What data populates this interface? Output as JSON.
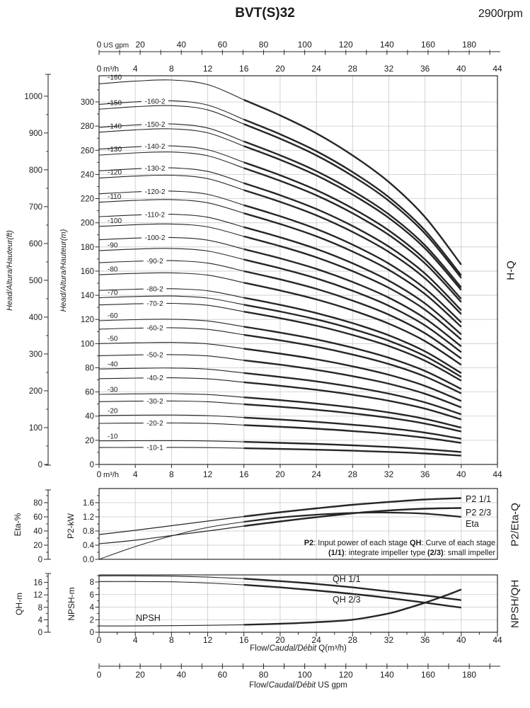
{
  "header": {
    "title": "BVT(S)32",
    "rpm": "2900rpm"
  },
  "axes": {
    "gpm_unit": "US gpm",
    "m3h_unit": "m³/h",
    "gpm_ticks": [
      0,
      20,
      40,
      60,
      80,
      100,
      120,
      140,
      160,
      180
    ],
    "gpm_minor_step": 10,
    "m3h_ticks": [
      0,
      4,
      8,
      12,
      16,
      20,
      24,
      28,
      32,
      36,
      40,
      44
    ],
    "ft_ticks": [
      0,
      100,
      200,
      300,
      400,
      500,
      600,
      700,
      800,
      900,
      1000
    ],
    "m_ticks": [
      0,
      20,
      40,
      60,
      80,
      100,
      120,
      140,
      160,
      180,
      200,
      220,
      240,
      260,
      280,
      300
    ],
    "eta_ticks": [
      0,
      20,
      40,
      60,
      80
    ],
    "kw_ticks": [
      "0.0",
      "0.4",
      "0.8",
      "1.2",
      "1.6"
    ],
    "qh_ticks": [
      0,
      4,
      8,
      12,
      16
    ],
    "npsh_ticks": [
      0,
      2,
      4,
      6,
      8
    ],
    "head_ft_label": "Head/Altura/Hauteur(ft)",
    "head_m_label": "Head/Altura/Hauteur(m)",
    "eta_label": "Eta-%",
    "p2_label": "P2-kW",
    "qh_label": "QH-m",
    "npsh_label": "NPSH-m",
    "right_hq": "H-Q",
    "right_p2": "P2/Eta-Q",
    "right_npsh": "NPSH/QH",
    "flow_caption_m3h": {
      "plain1": "Flow/",
      "italic": "Caudal/Débit",
      "plain2": " Q(m³/h)"
    },
    "flow_caption_gpm": {
      "plain1": "Flow/",
      "italic": "Caudal/Débit",
      "plain2": "  US gpm"
    }
  },
  "note": {
    "line1": [
      {
        "t": "P2",
        "b": 1
      },
      {
        "t": ": Input power of each stage ",
        "b": 0
      },
      {
        "t": "QH",
        "b": 1
      },
      {
        "t": ": Curve of each stage",
        "b": 0
      }
    ],
    "line2": [
      {
        "t": "(1/1)",
        "b": 1
      },
      {
        "t": ": integrate impeller type ",
        "b": 0
      },
      {
        "t": "(2/3)",
        "b": 1
      },
      {
        "t": ": small impeller",
        "b": 0
      }
    ]
  },
  "colors": {
    "curve": "#262626",
    "grid": "#c9c9c9",
    "border": "#2a2a2a",
    "text": "#1a1a1a"
  },
  "chart_data": [
    {
      "id": "hq_main",
      "type": "line",
      "right_label": "H-Q",
      "xlabel_units": [
        "US gpm",
        "m³/h"
      ],
      "x_range_m3h": [
        0,
        44
      ],
      "y_range_m": [
        0,
        318
      ],
      "y_range_ft": [
        0,
        1045
      ],
      "grid": true,
      "thick_from_q": 16,
      "shape_q": [
        0,
        4,
        8,
        12,
        16,
        20,
        24,
        28,
        32,
        36,
        40
      ],
      "shape_f": [
        1.0,
        1.007,
        1.01,
        0.998,
        0.958,
        0.917,
        0.87,
        0.812,
        0.742,
        0.65,
        0.525
      ],
      "curves": [
        {
          "label": "-160",
          "shutoff_head_m": 315,
          "style": "above"
        },
        {
          "label": "-160-2",
          "shutoff_head_m": 298,
          "style": "inline"
        },
        {
          "label": "-150",
          "shutoff_head_m": 294,
          "style": "above"
        },
        {
          "label": "-150-2",
          "shutoff_head_m": 279,
          "style": "inline"
        },
        {
          "label": "-140",
          "shutoff_head_m": 275,
          "style": "above"
        },
        {
          "label": "-140-2",
          "shutoff_head_m": 261,
          "style": "inline"
        },
        {
          "label": "-130",
          "shutoff_head_m": 256,
          "style": "above"
        },
        {
          "label": "-130-2",
          "shutoff_head_m": 243,
          "style": "inline"
        },
        {
          "label": "-120",
          "shutoff_head_m": 237,
          "style": "above"
        },
        {
          "label": "-120-2",
          "shutoff_head_m": 224,
          "style": "inline"
        },
        {
          "label": "-110",
          "shutoff_head_m": 217,
          "style": "above"
        },
        {
          "label": "-110-2",
          "shutoff_head_m": 205,
          "style": "inline"
        },
        {
          "label": "-100",
          "shutoff_head_m": 197,
          "style": "above"
        },
        {
          "label": "-100-2",
          "shutoff_head_m": 186,
          "style": "inline"
        },
        {
          "label": "-90",
          "shutoff_head_m": 177,
          "style": "above"
        },
        {
          "label": "-90-2",
          "shutoff_head_m": 167,
          "style": "inline"
        },
        {
          "label": "-80",
          "shutoff_head_m": 157,
          "style": "above"
        },
        {
          "label": "-80-2",
          "shutoff_head_m": 144,
          "style": "inline"
        },
        {
          "label": "-70",
          "shutoff_head_m": 138,
          "style": "above"
        },
        {
          "label": "-70-2",
          "shutoff_head_m": 132,
          "style": "inline"
        },
        {
          "label": "-60",
          "shutoff_head_m": 119,
          "style": "above"
        },
        {
          "label": "-60-2",
          "shutoff_head_m": 112,
          "style": "inline"
        },
        {
          "label": "-50",
          "shutoff_head_m": 100,
          "style": "above"
        },
        {
          "label": "-50-2",
          "shutoff_head_m": 90,
          "style": "inline"
        },
        {
          "label": "-40",
          "shutoff_head_m": 79,
          "style": "above"
        },
        {
          "label": "-40-2",
          "shutoff_head_m": 71,
          "style": "inline"
        },
        {
          "label": "-30",
          "shutoff_head_m": 58,
          "style": "above"
        },
        {
          "label": "-30-2",
          "shutoff_head_m": 52,
          "style": "inline"
        },
        {
          "label": "-20",
          "shutoff_head_m": 40.5,
          "style": "above"
        },
        {
          "label": "-20-2",
          "shutoff_head_m": 34,
          "style": "inline"
        },
        {
          "label": "-10",
          "shutoff_head_m": 19.5,
          "style": "above"
        },
        {
          "label": "-10-1",
          "shutoff_head_m": 14,
          "style": "inline"
        }
      ]
    },
    {
      "id": "p2_eta",
      "type": "line",
      "right_label": "P2/Eta-Q",
      "y_left_eta_range": [
        0,
        100
      ],
      "y_left_kw_range": [
        0,
        2.0
      ],
      "grid": true,
      "thick_from_q": 16,
      "series": [
        {
          "name": "P2 1/1",
          "unit": "kW",
          "x": [
            0,
            4,
            8,
            12,
            16,
            20,
            24,
            28,
            32,
            36,
            40
          ],
          "y": [
            0.7,
            0.82,
            0.95,
            1.08,
            1.21,
            1.33,
            1.44,
            1.54,
            1.62,
            1.69,
            1.73
          ]
        },
        {
          "name": "P2 2/3",
          "unit": "kW",
          "x": [
            0,
            4,
            8,
            12,
            16,
            20,
            24,
            28,
            32,
            36,
            40
          ],
          "y": [
            0.44,
            0.54,
            0.67,
            0.8,
            0.94,
            1.07,
            1.19,
            1.3,
            1.38,
            1.43,
            1.45
          ]
        },
        {
          "name": "Eta",
          "unit": "%",
          "x": [
            0,
            4,
            8,
            12,
            16,
            20,
            24,
            28,
            32,
            36,
            40
          ],
          "y": [
            0,
            18,
            33,
            45,
            53,
            59,
            63,
            65.5,
            66,
            64.5,
            60
          ]
        }
      ]
    },
    {
      "id": "npsh_qh",
      "type": "line",
      "right_label": "NPSH/QH",
      "y_left_qh_range": [
        0,
        18.4
      ],
      "y_left_npsh_range": [
        0,
        9.1
      ],
      "grid": true,
      "thick_from_q": 16,
      "series": [
        {
          "name": "QH 1/1",
          "unit": "m",
          "x": [
            0,
            4,
            8,
            12,
            16,
            20,
            24,
            28,
            32,
            36,
            40
          ],
          "y": [
            18.1,
            18.1,
            18.0,
            17.7,
            17.2,
            16.4,
            15.5,
            14.4,
            13.1,
            11.8,
            10.3
          ]
        },
        {
          "name": "QH 2/3",
          "unit": "m",
          "x": [
            0,
            4,
            8,
            12,
            16,
            20,
            24,
            28,
            32,
            36,
            40
          ],
          "y": [
            16.3,
            16.3,
            16.2,
            15.8,
            15.2,
            14.4,
            13.4,
            12.3,
            11.0,
            9.5,
            7.9
          ]
        },
        {
          "name": "NPSH",
          "unit": "m",
          "x": [
            0,
            4,
            8,
            12,
            16,
            20,
            24,
            28,
            32,
            34,
            36,
            38,
            40
          ],
          "y": [
            1.0,
            1.0,
            1.05,
            1.1,
            1.2,
            1.35,
            1.6,
            2.0,
            3.0,
            3.8,
            4.7,
            5.7,
            6.8
          ]
        }
      ]
    }
  ]
}
